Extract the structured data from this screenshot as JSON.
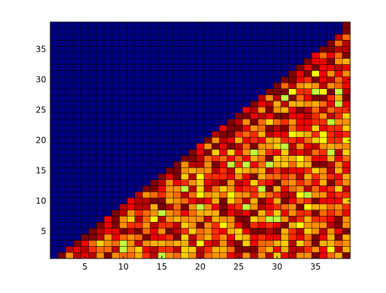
{
  "chart_data": {
    "type": "heatmap",
    "title": "",
    "xlabel": "",
    "ylabel": "",
    "x_range": [
      1,
      39
    ],
    "y_range": [
      1,
      39
    ],
    "x_ticks": [
      5,
      10,
      15,
      20,
      25,
      30,
      35
    ],
    "y_ticks": [
      5,
      10,
      15,
      20,
      25,
      30,
      35
    ],
    "x_tick_labels": [
      "5",
      "10",
      "15",
      "20",
      "25",
      "30",
      "35"
    ],
    "y_tick_labels": [
      "5",
      "10",
      "15",
      "20",
      "25",
      "30",
      "35"
    ],
    "grid": false,
    "structure": "lower-triangular: cell (x, y) is colored for y < x (y <= x at the top end), all other cells filled with the background color",
    "background_color": "#000080",
    "cell_edge_color": "#000000",
    "palette": [
      "#7f0000",
      "#bb0000",
      "#f00000",
      "#ff2c00",
      "#ff6a00",
      "#ff9000",
      "#ffb000",
      "#ffd000",
      "#ffff00",
      "#c0ff40"
    ],
    "value_range": [
      0,
      9
    ]
  }
}
